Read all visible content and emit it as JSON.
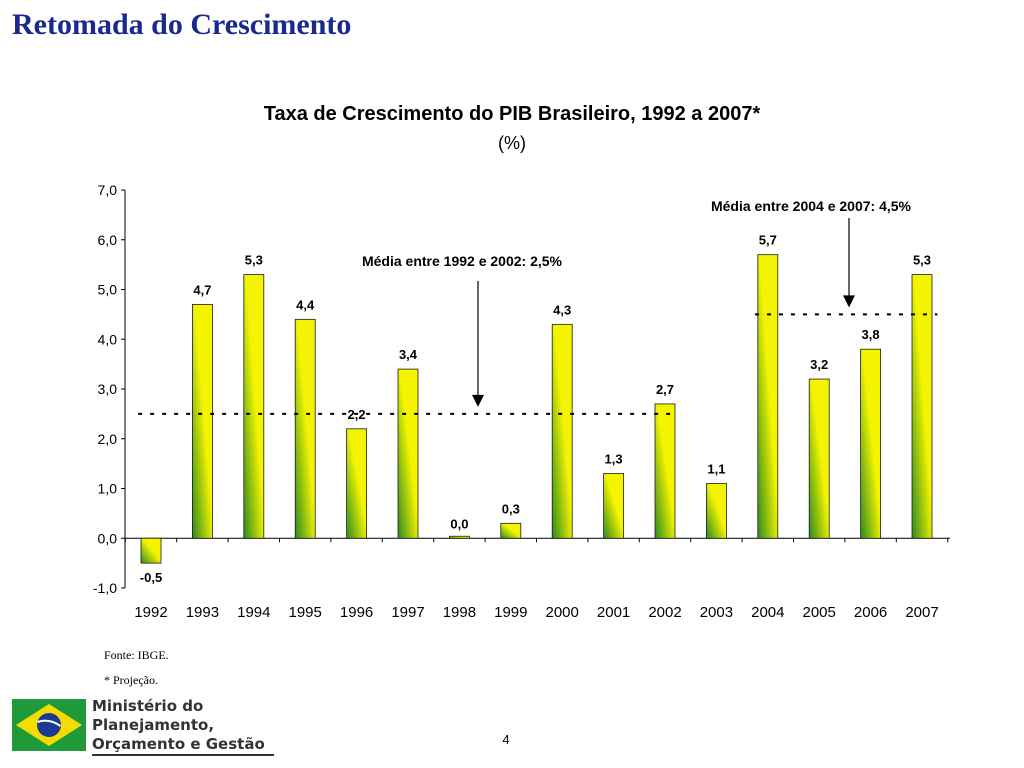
{
  "slide": {
    "title": "Retomada do Crescimento",
    "source": "Fonte: IBGE.",
    "note": "* Projeção.",
    "page_number": "4",
    "logo": {
      "line1": "Ministério do",
      "line2": "Planejamento,",
      "line3": "Orçamento e Gestão"
    }
  },
  "colors": {
    "title": "#1a2a8c",
    "bar_light": "#f4f400",
    "bar_dark": "#2e8b1f",
    "flag_green": "#1f9a3a",
    "flag_yellow": "#f5dc00",
    "flag_blue": "#1b3a93"
  },
  "chart_data": {
    "type": "bar",
    "title": "Taxa de Crescimento do PIB Brasileiro, 1992 a 2007*",
    "subtitle": "(%)",
    "categories": [
      "1992",
      "1993",
      "1994",
      "1995",
      "1996",
      "1997",
      "1998",
      "1999",
      "2000",
      "2001",
      "2002",
      "2003",
      "2004",
      "2005",
      "2006",
      "2007"
    ],
    "values": [
      -0.5,
      4.7,
      5.3,
      4.4,
      2.2,
      3.4,
      0.0,
      0.3,
      4.3,
      1.3,
      2.7,
      1.1,
      5.7,
      3.2,
      3.8,
      5.3
    ],
    "value_labels": [
      "-0,5",
      "4,7",
      "5,3",
      "4,4",
      "2,2",
      "3,4",
      "0,0",
      "0,3",
      "4,3",
      "1,3",
      "2,7",
      "1,1",
      "5,7",
      "3,2",
      "3,8",
      "5,3"
    ],
    "y_ticks": [
      -1,
      0,
      1,
      2,
      3,
      4,
      5,
      6,
      7
    ],
    "y_tick_labels": [
      "-1,0",
      "0,0",
      "1,0",
      "2,0",
      "3,0",
      "4,0",
      "5,0",
      "6,0",
      "7,0"
    ],
    "ylim": [
      -1,
      7
    ],
    "grid": false,
    "legend": "none",
    "reference_lines": [
      {
        "label": "Média entre 1992 e 2002: 2,5%",
        "value": 2.5,
        "from": "1992",
        "to": "2002"
      },
      {
        "label": "Média entre 2004 e 2007: 4,5%",
        "value": 4.5,
        "from": "2004",
        "to": "2007"
      }
    ]
  }
}
